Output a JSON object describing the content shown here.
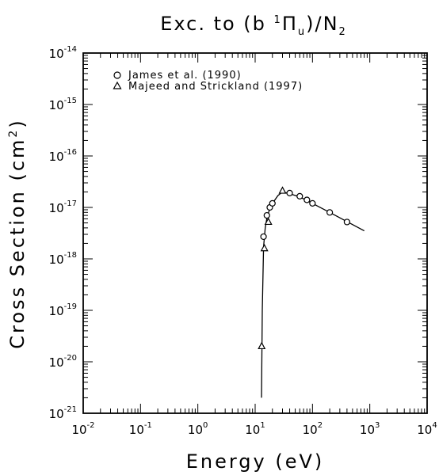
{
  "chart_data": {
    "type": "scatter",
    "title": "Exc. to (b ¹Πᵤ)/N₂",
    "title_parts": {
      "prefix": "Exc. to (b ",
      "superscript": "1",
      "symbol": "Π",
      "subscript": "u",
      "suffix": ")/N",
      "suffix_subscript": "2"
    },
    "xlabel": "Energy (eV)",
    "ylabel_parts": {
      "main": "Cross Section (cm",
      "superscript": "2",
      "close": ")"
    },
    "xscale": "log",
    "yscale": "log",
    "xlim": [
      0.01,
      10000
    ],
    "ylim": [
      1e-21,
      1e-14
    ],
    "x_ticks": [
      {
        "base": "10",
        "exp": "-2",
        "value": 0.01
      },
      {
        "base": "10",
        "exp": "-1",
        "value": 0.1
      },
      {
        "base": "10",
        "exp": "0",
        "value": 1
      },
      {
        "base": "10",
        "exp": "1",
        "value": 10
      },
      {
        "base": "10",
        "exp": "2",
        "value": 100
      },
      {
        "base": "10",
        "exp": "3",
        "value": 1000
      },
      {
        "base": "10",
        "exp": "4",
        "value": 10000
      }
    ],
    "y_ticks": [
      {
        "base": "10",
        "exp": "-21",
        "value": 1e-21
      },
      {
        "base": "10",
        "exp": "-20",
        "value": 1e-20
      },
      {
        "base": "10",
        "exp": "-19",
        "value": 1e-19
      },
      {
        "base": "10",
        "exp": "-18",
        "value": 1e-18
      },
      {
        "base": "10",
        "exp": "-17",
        "value": 1e-17
      },
      {
        "base": "10",
        "exp": "-16",
        "value": 1e-16
      },
      {
        "base": "10",
        "exp": "-15",
        "value": 1e-15
      },
      {
        "base": "10",
        "exp": "-14",
        "value": 1e-14
      }
    ],
    "legend_position": "top-left",
    "grid": false,
    "series": [
      {
        "name": "James et al. (1990)",
        "marker": "circle",
        "x": [
          14,
          16,
          18,
          20,
          40,
          60,
          80,
          100,
          200,
          400
        ],
        "y": [
          2.7e-18,
          7e-18,
          1e-17,
          1.2e-17,
          1.9e-17,
          1.65e-17,
          1.4e-17,
          1.2e-17,
          8e-18,
          5.2e-18
        ]
      },
      {
        "name": "Majeed and Strickland (1997)",
        "marker": "triangle",
        "x": [
          13,
          14.5,
          17,
          30
        ],
        "y": [
          2e-20,
          1.6e-18,
          5.2e-18,
          2.1e-17
        ]
      },
      {
        "name": "",
        "marker": "line",
        "x": [
          12.9,
          13.3,
          14,
          15,
          16,
          18,
          20,
          25,
          30,
          40,
          60,
          100,
          200,
          400,
          800
        ],
        "y": [
          2e-21,
          1e-19,
          1.7e-18,
          4e-18,
          6.2e-18,
          9.5e-18,
          1.2e-17,
          1.7e-17,
          2e-17,
          1.85e-17,
          1.6e-17,
          1.2e-17,
          8e-18,
          5.3e-18,
          3.5e-18
        ]
      }
    ]
  }
}
